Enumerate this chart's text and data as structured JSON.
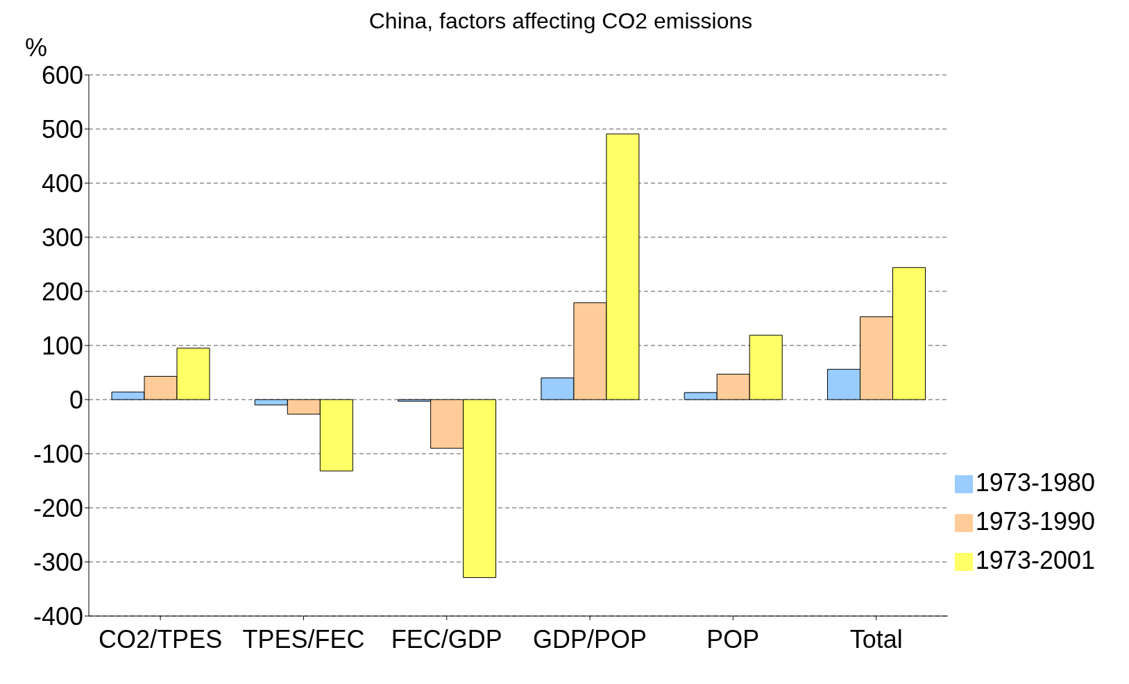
{
  "chart_data": {
    "type": "bar",
    "title": "China, factors affecting CO2 emissions",
    "ylabel": "%",
    "categories": [
      "CO2/TPES",
      "TPES/FEC",
      "FEC/GDP",
      "GDP/POP",
      "POP",
      "Total"
    ],
    "series": [
      {
        "name": "1973-1980",
        "color": "#99ccff",
        "values": [
          14,
          -10,
          -3,
          40,
          13,
          56
        ]
      },
      {
        "name": "1973-1990",
        "color": "#ffcc99",
        "values": [
          43,
          -27,
          -90,
          179,
          47,
          153
        ]
      },
      {
        "name": "1973-2001",
        "color": "#ffff66",
        "values": [
          95,
          -132,
          -329,
          491,
          119,
          244
        ]
      }
    ],
    "ylim": [
      -400,
      600
    ],
    "yticks": [
      -400,
      -300,
      -200,
      -100,
      0,
      100,
      200,
      300,
      400,
      500,
      600
    ],
    "grid": "y",
    "legend": "bottom right"
  }
}
